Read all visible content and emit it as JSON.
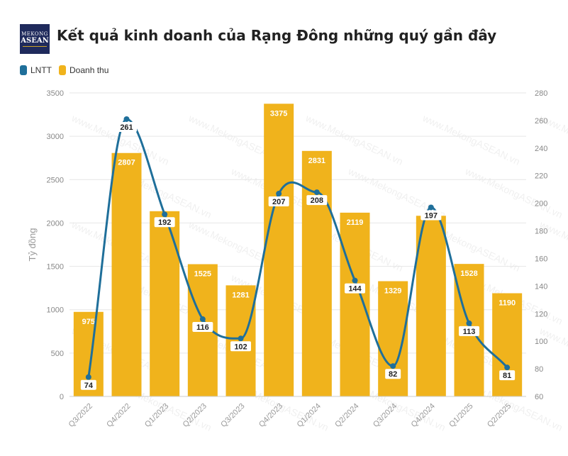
{
  "header": {
    "title": "Kết quả kinh doanh của Rạng Đông những quý gần đây",
    "logo_line1": "MEKONG",
    "logo_line2": "ASEAN"
  },
  "watermark": "www.MekongASEAN.vn",
  "colors": {
    "line": "#1f6f9a",
    "bar": "#f0b31c",
    "label_bg": "#ffffff"
  },
  "chart_data": {
    "type": "bar",
    "title": "Kết quả kinh doanh của Rạng Đông những quý gần đây",
    "categories": [
      "Q3/2022",
      "Q4/2022",
      "Q1/2023",
      "Q2/2023",
      "Q3/2023",
      "Q4/2023",
      "Q1/2024",
      "Q2/2024",
      "Q3/2024",
      "Q4/2024",
      "Q1/2025",
      "Q2/2025"
    ],
    "series": [
      {
        "name": "Doanh thu",
        "type": "bar",
        "axis": "left",
        "values": [
          975,
          2807,
          2136,
          1525,
          1281,
          3375,
          2831,
          2119,
          1329,
          2083,
          1528,
          1190
        ],
        "labels": [
          "975",
          "2807",
          "",
          "1525",
          "1281",
          "3375",
          "2831",
          "2119",
          "1329",
          "",
          "1528",
          "1190"
        ]
      },
      {
        "name": "LNTT",
        "type": "line",
        "axis": "right",
        "values": [
          74,
          261,
          192,
          116,
          102,
          207,
          208,
          144,
          82,
          197,
          113,
          81
        ]
      }
    ],
    "ylabel": "Tỷ đồng",
    "ylim": [
      0,
      3500
    ],
    "yticks": [
      0,
      500,
      1000,
      1500,
      2000,
      2500,
      3000,
      3500
    ],
    "y2lim": [
      60,
      280
    ],
    "y2ticks": [
      60,
      80,
      100,
      120,
      140,
      160,
      180,
      200,
      220,
      240,
      260,
      280
    ],
    "legend": "top-left",
    "grid": true
  }
}
